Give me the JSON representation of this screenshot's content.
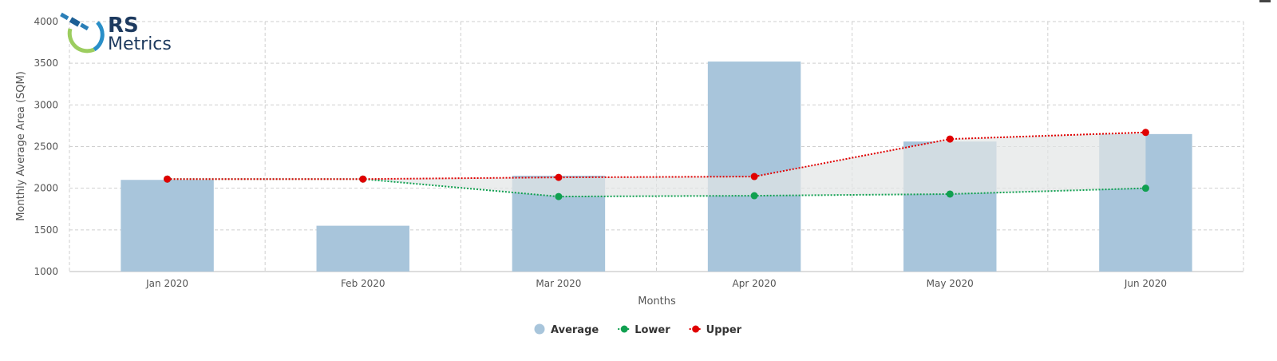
{
  "logo": {
    "line1": "RS",
    "line2": "Metrics"
  },
  "chart_data": {
    "type": "bar",
    "categories": [
      "Jan 2020",
      "Feb 2020",
      "Mar 2020",
      "Apr 2020",
      "May 2020",
      "Jun 2020"
    ],
    "series": [
      {
        "name": "Average",
        "kind": "bar",
        "color": "#a8c5db",
        "values": [
          2100,
          1550,
          2150,
          3520,
          2560,
          2650
        ]
      },
      {
        "name": "Lower",
        "kind": "line",
        "color": "#10a050",
        "values": [
          2110,
          2110,
          1900,
          1910,
          1930,
          2000
        ]
      },
      {
        "name": "Upper",
        "kind": "line",
        "color": "#e00000",
        "values": [
          2110,
          2110,
          2130,
          2140,
          2590,
          2670
        ]
      }
    ],
    "band": {
      "between": [
        "Lower",
        "Upper"
      ],
      "color": "#e3e6e6"
    },
    "xlabel": "Months",
    "ylabel": "Monthly Average Area (SQM)",
    "ylim": [
      1000,
      4000
    ],
    "yticks": [
      1000,
      1500,
      2000,
      2500,
      3000,
      3500,
      4000
    ],
    "grid": true,
    "legend_position": "bottom-center"
  }
}
